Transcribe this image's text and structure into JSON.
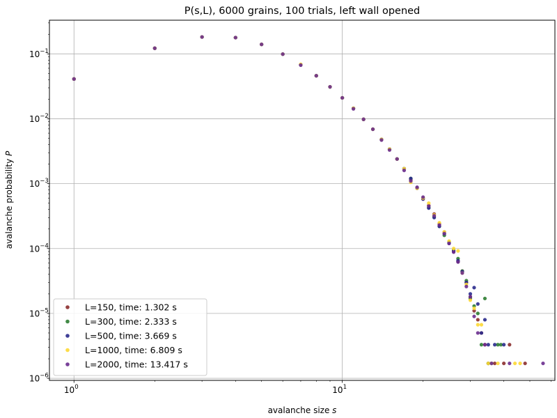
{
  "chart_data": {
    "type": "scatter",
    "title": "P(s,L), 6000 grains, 100 trials, left wall opened",
    "xlabel": "avalanche size s",
    "ylabel": "avalanche probability P",
    "x_scale": "log",
    "y_scale": "log",
    "xlim": [
      0.81,
      62
    ],
    "ylim": [
      9.3e-07,
      0.33
    ],
    "grid": true,
    "legend_placement": "lower-left",
    "x_ticks": [
      {
        "value": 1,
        "label": "10",
        "exp": "0"
      },
      {
        "value": 10,
        "label": "10",
        "exp": "1"
      }
    ],
    "y_ticks": [
      {
        "value": 1e-06,
        "label": "10",
        "exp": "−6"
      },
      {
        "value": 1e-05,
        "label": "10",
        "exp": "−5"
      },
      {
        "value": 0.0001,
        "label": "10",
        "exp": "−4"
      },
      {
        "value": 0.001,
        "label": "10",
        "exp": "−3"
      },
      {
        "value": 0.01,
        "label": "10",
        "exp": "−2"
      },
      {
        "value": 0.1,
        "label": "10",
        "exp": "−1"
      }
    ],
    "series": [
      {
        "name": "L=150, time: 1.302 s",
        "color": "#8b2e2e",
        "points": [
          [
            1,
            0.041
          ],
          [
            2,
            0.122
          ],
          [
            3,
            0.182
          ],
          [
            4,
            0.178
          ],
          [
            5,
            0.14
          ],
          [
            6,
            0.099
          ],
          [
            7,
            0.068
          ],
          [
            8,
            0.046
          ],
          [
            9,
            0.031
          ],
          [
            10,
            0.021
          ],
          [
            11,
            0.0145
          ],
          [
            12,
            0.0098
          ],
          [
            13,
            0.0069
          ],
          [
            14,
            0.0048
          ],
          [
            15,
            0.0034
          ],
          [
            16,
            0.0024
          ],
          [
            17,
            0.0017
          ],
          [
            18,
            0.00115
          ],
          [
            19,
            0.00085
          ],
          [
            20,
            0.00058
          ],
          [
            21,
            0.00046
          ],
          [
            22,
            0.00034
          ],
          [
            23,
            0.00024
          ],
          [
            24,
            0.00018
          ],
          [
            25,
            0.000125
          ],
          [
            26,
            9e-05
          ],
          [
            27,
            6.3e-05
          ],
          [
            28,
            4.5e-05
          ],
          [
            29,
            3e-05
          ],
          [
            30,
            1.8e-05
          ],
          [
            31,
            1.1e-05
          ],
          [
            32,
            8e-06
          ],
          [
            33,
            5e-06
          ],
          [
            34,
            3.3e-06
          ],
          [
            35,
            1.7e-06
          ],
          [
            37,
            1.7e-06
          ],
          [
            40,
            1.7e-06
          ],
          [
            42,
            3.3e-06
          ],
          [
            48,
            1.7e-06
          ]
        ]
      },
      {
        "name": "L=300, time: 2.333 s",
        "color": "#2e7d32",
        "points": [
          [
            1,
            0.041
          ],
          [
            2,
            0.122
          ],
          [
            3,
            0.182
          ],
          [
            4,
            0.178
          ],
          [
            5,
            0.14
          ],
          [
            6,
            0.099
          ],
          [
            7,
            0.068
          ],
          [
            8,
            0.046
          ],
          [
            9,
            0.031
          ],
          [
            10,
            0.021
          ],
          [
            11,
            0.0145
          ],
          [
            12,
            0.0098
          ],
          [
            13,
            0.0069
          ],
          [
            14,
            0.0048
          ],
          [
            15,
            0.0034
          ],
          [
            16,
            0.0024
          ],
          [
            17,
            0.0017
          ],
          [
            18,
            0.0012
          ],
          [
            19,
            0.00086
          ],
          [
            20,
            0.0006
          ],
          [
            21,
            0.00043
          ],
          [
            22,
            0.00031
          ],
          [
            23,
            0.00022
          ],
          [
            24,
            0.00016
          ],
          [
            25,
            0.000125
          ],
          [
            26,
            9.5e-05
          ],
          [
            27,
            7e-05
          ],
          [
            28,
            4.5e-05
          ],
          [
            29,
            3.2e-05
          ],
          [
            30,
            1.7e-05
          ],
          [
            31,
            1.3e-05
          ],
          [
            32,
            1e-05
          ],
          [
            33,
            3.3e-06
          ],
          [
            34,
            1.7e-05
          ],
          [
            35,
            1.7e-06
          ],
          [
            38,
            3.3e-06
          ],
          [
            39,
            3.3e-06
          ]
        ]
      },
      {
        "name": "L=500, time: 3.669 s",
        "color": "#2a2a8c",
        "points": [
          [
            1,
            0.041
          ],
          [
            2,
            0.122
          ],
          [
            3,
            0.182
          ],
          [
            4,
            0.178
          ],
          [
            5,
            0.14
          ],
          [
            6,
            0.099
          ],
          [
            7,
            0.068
          ],
          [
            8,
            0.046
          ],
          [
            9,
            0.031
          ],
          [
            10,
            0.021
          ],
          [
            11,
            0.0145
          ],
          [
            12,
            0.0098
          ],
          [
            13,
            0.0069
          ],
          [
            14,
            0.0048
          ],
          [
            15,
            0.0034
          ],
          [
            16,
            0.0024
          ],
          [
            17,
            0.0017
          ],
          [
            18,
            0.0012
          ],
          [
            19,
            0.00085
          ],
          [
            20,
            0.00058
          ],
          [
            21,
            0.00042
          ],
          [
            22,
            0.0003
          ],
          [
            23,
            0.00022
          ],
          [
            24,
            0.00017
          ],
          [
            25,
            0.00012
          ],
          [
            26,
            9.2e-05
          ],
          [
            27,
            6.5e-05
          ],
          [
            28,
            4.4e-05
          ],
          [
            29,
            3e-05
          ],
          [
            30,
            2e-05
          ],
          [
            31,
            2.5e-05
          ],
          [
            32,
            1.4e-05
          ],
          [
            33,
            5e-06
          ],
          [
            34,
            8e-06
          ],
          [
            35,
            3.3e-06
          ],
          [
            36,
            1.7e-06
          ],
          [
            37,
            3.3e-06
          ],
          [
            40,
            3.3e-06
          ]
        ]
      },
      {
        "name": "L=1000, time: 6.809 s",
        "color": "#fdd835",
        "points": [
          [
            1,
            0.041
          ],
          [
            2,
            0.122
          ],
          [
            3,
            0.182
          ],
          [
            4,
            0.178
          ],
          [
            5,
            0.14
          ],
          [
            6,
            0.099
          ],
          [
            7,
            0.069
          ],
          [
            8,
            0.046
          ],
          [
            9,
            0.031
          ],
          [
            10,
            0.021
          ],
          [
            11,
            0.0145
          ],
          [
            12,
            0.0098
          ],
          [
            13,
            0.0069
          ],
          [
            14,
            0.0048
          ],
          [
            15,
            0.0034
          ],
          [
            16,
            0.0024
          ],
          [
            17,
            0.0017
          ],
          [
            18,
            0.00105
          ],
          [
            19,
            0.00085
          ],
          [
            20,
            0.0006
          ],
          [
            21,
            0.0005
          ],
          [
            22,
            0.00033
          ],
          [
            23,
            0.00025
          ],
          [
            24,
            0.00018
          ],
          [
            25,
            0.00013
          ],
          [
            26,
            0.0001
          ],
          [
            27,
            9.2e-05
          ],
          [
            28,
            4.2e-05
          ],
          [
            29,
            2.8e-05
          ],
          [
            30,
            1.6e-05
          ],
          [
            31,
            1.2e-05
          ],
          [
            32,
            6.7e-06
          ],
          [
            33,
            6.7e-06
          ],
          [
            35,
            1.7e-06
          ],
          [
            36,
            1.7e-06
          ],
          [
            38,
            1.7e-06
          ],
          [
            44,
            1.7e-06
          ],
          [
            46,
            1.7e-06
          ]
        ]
      },
      {
        "name": "L=2000, time: 13.417 s",
        "color": "#6a2c8e",
        "points": [
          [
            1,
            0.041
          ],
          [
            2,
            0.122
          ],
          [
            3,
            0.182
          ],
          [
            4,
            0.178
          ],
          [
            5,
            0.14
          ],
          [
            6,
            0.099
          ],
          [
            7,
            0.067
          ],
          [
            8,
            0.046
          ],
          [
            9,
            0.031
          ],
          [
            10,
            0.021
          ],
          [
            11,
            0.0142
          ],
          [
            12,
            0.0098
          ],
          [
            13,
            0.0069
          ],
          [
            14,
            0.0047
          ],
          [
            15,
            0.0033
          ],
          [
            16,
            0.0024
          ],
          [
            17,
            0.0016
          ],
          [
            18,
            0.0011
          ],
          [
            19,
            0.00088
          ],
          [
            20,
            0.00062
          ],
          [
            21,
            0.00045
          ],
          [
            22,
            0.00032
          ],
          [
            23,
            0.00023
          ],
          [
            24,
            0.00017
          ],
          [
            25,
            0.00012
          ],
          [
            26,
            8.8e-05
          ],
          [
            27,
            6.2e-05
          ],
          [
            28,
            4.2e-05
          ],
          [
            29,
            2.6e-05
          ],
          [
            30,
            1.8e-05
          ],
          [
            31,
            9e-06
          ],
          [
            32,
            5e-06
          ],
          [
            34,
            3.3e-06
          ],
          [
            36,
            1.7e-06
          ],
          [
            42,
            1.7e-06
          ],
          [
            56,
            1.7e-06
          ]
        ]
      }
    ]
  }
}
